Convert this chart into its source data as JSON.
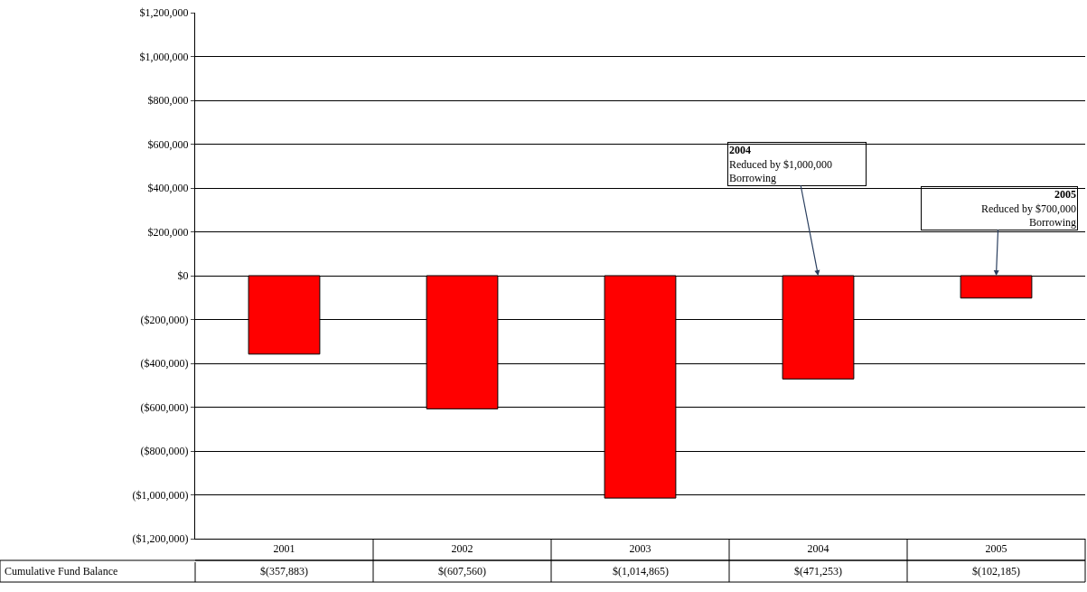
{
  "chart_data": {
    "type": "bar",
    "categories": [
      "2001",
      "2002",
      "2003",
      "2004",
      "2005"
    ],
    "series": [
      {
        "name": "Cumulative Fund Balance",
        "color": "#ff0000",
        "values": [
          -357883,
          -607560,
          -1014865,
          -471253,
          -102185
        ],
        "value_labels": [
          "$(357,883)",
          "$(607,560)",
          "$(1,014,865)",
          "$(471,253)",
          "$(102,185)"
        ]
      }
    ],
    "ylim": [
      -1200000,
      1200000
    ],
    "yticks": [
      {
        "value": -1200000,
        "label": "($1,200,000)"
      },
      {
        "value": -1000000,
        "label": "($1,000,000)"
      },
      {
        "value": -800000,
        "label": "($800,000)"
      },
      {
        "value": -600000,
        "label": "($600,000)"
      },
      {
        "value": -400000,
        "label": "($400,000)"
      },
      {
        "value": -200000,
        "label": "($200,000)"
      },
      {
        "value": 0,
        "label": "$0"
      },
      {
        "value": 200000,
        "label": "$200,000"
      },
      {
        "value": 400000,
        "label": "$400,000"
      },
      {
        "value": 600000,
        "label": "$600,000"
      },
      {
        "value": 800000,
        "label": "$800,000"
      },
      {
        "value": 1000000,
        "label": "$1,000,000"
      },
      {
        "value": 1200000,
        "label": "$1,200,000"
      }
    ],
    "grid": "y",
    "legend": "bottom left",
    "annotations": [
      {
        "text": "2004\nReduced by $1,000,000\nBorrowing",
        "x": "2004",
        "y": 0
      },
      {
        "text": "2005\nReduced by $700,000\nBorrowing",
        "x": "2005",
        "y": 0
      }
    ]
  }
}
